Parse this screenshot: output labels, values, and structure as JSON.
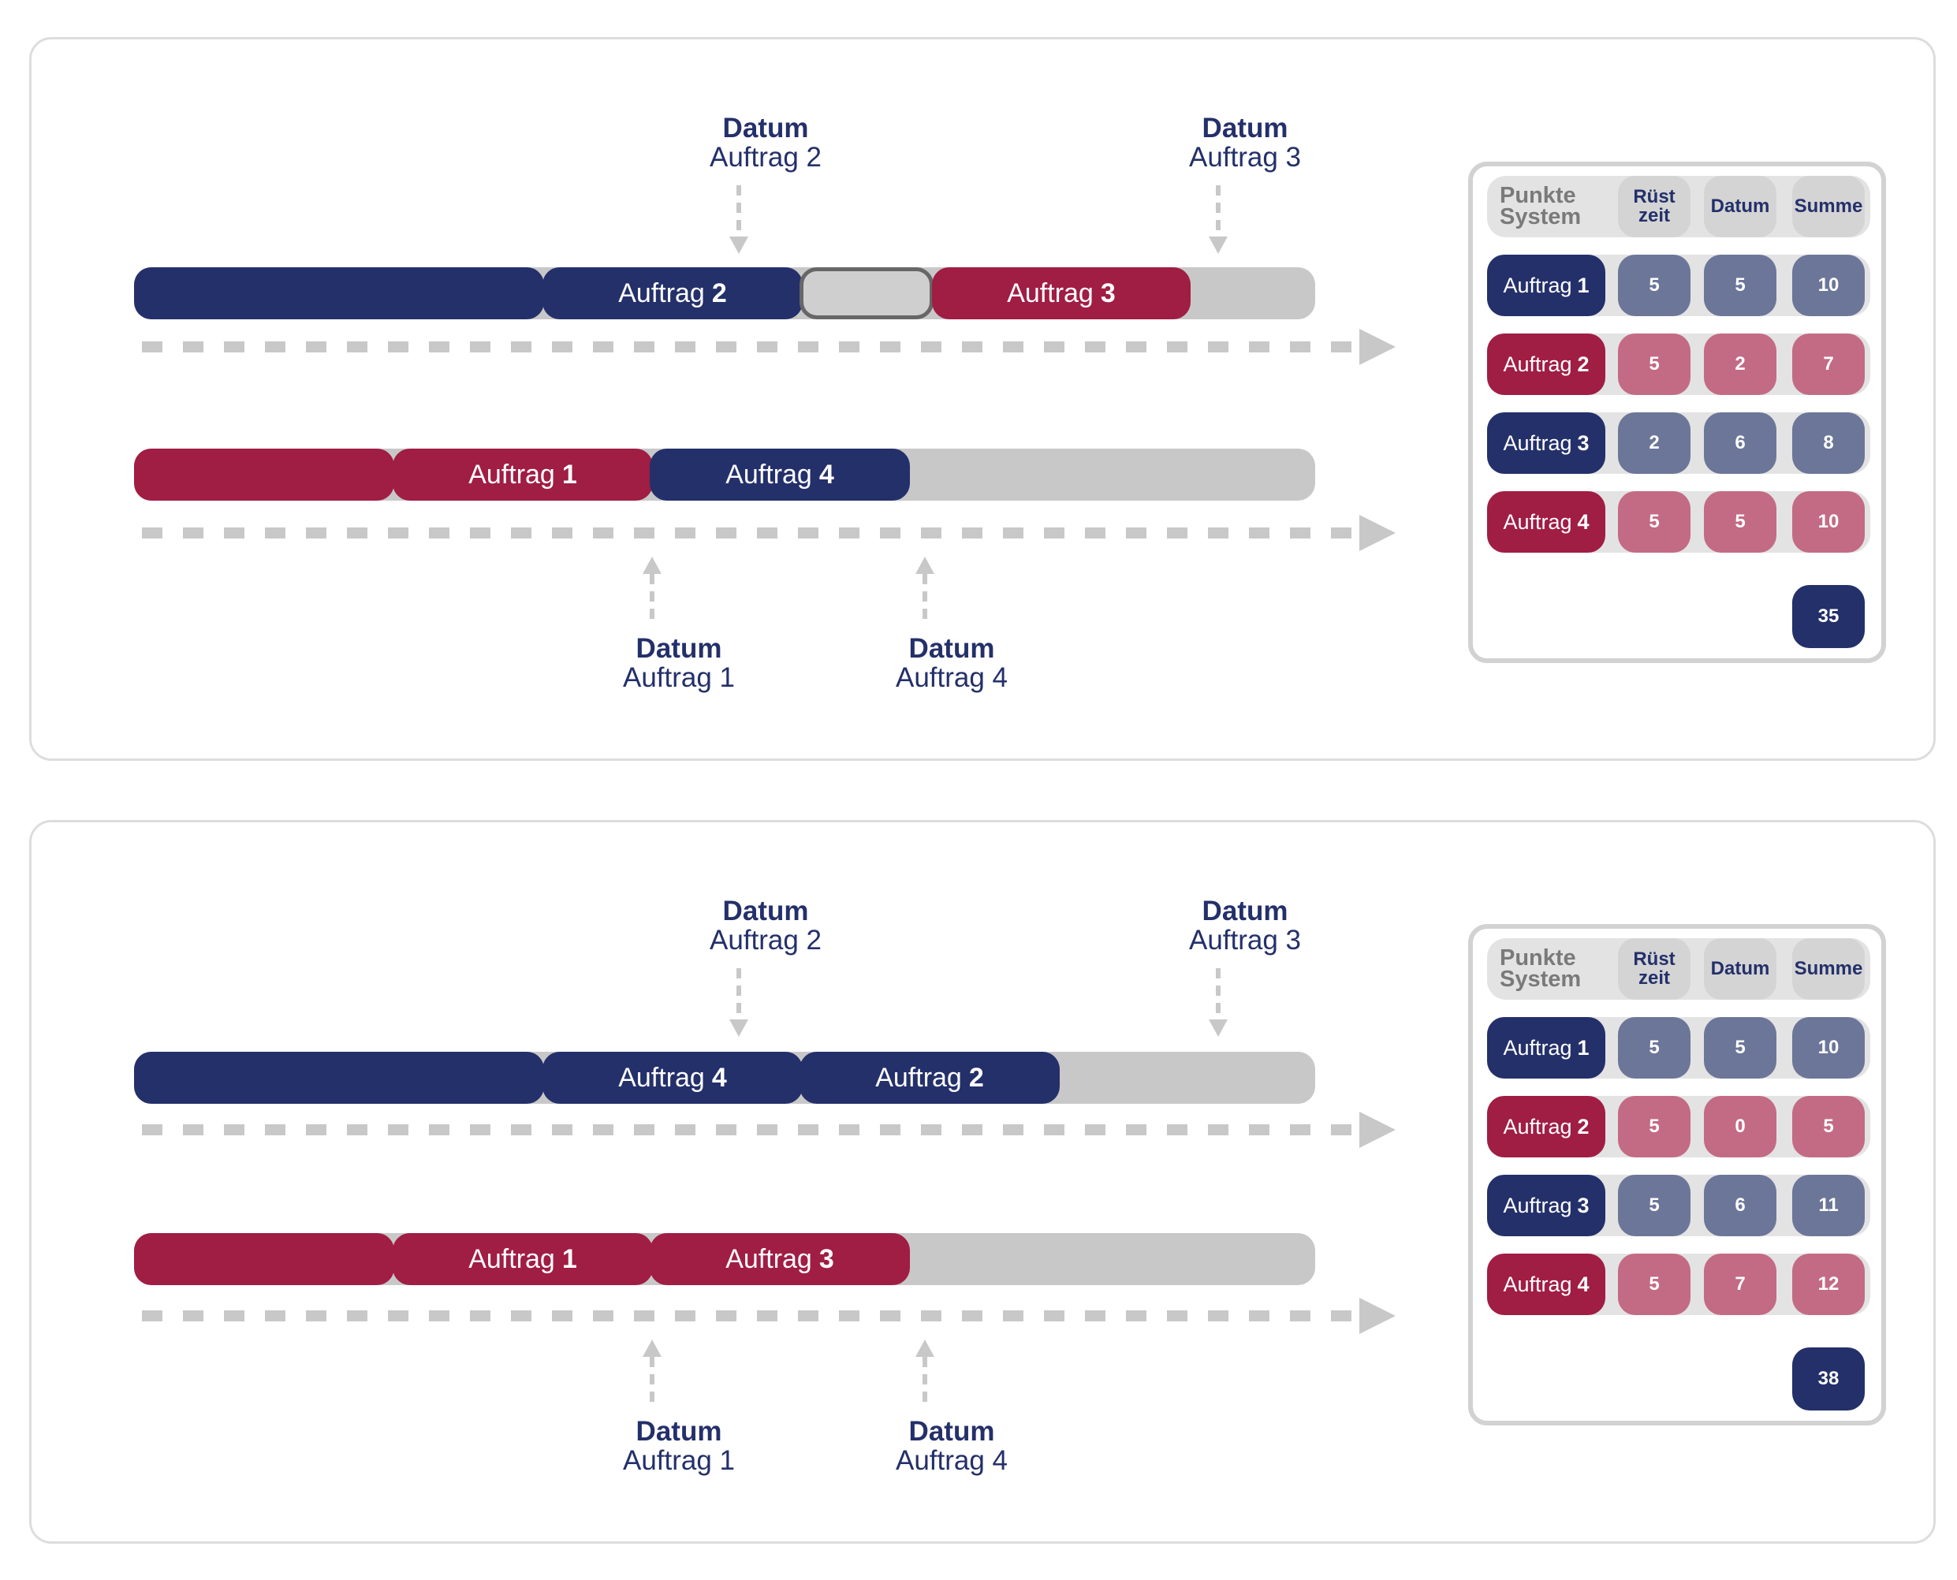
{
  "colors": {
    "navy": "#24306a",
    "crimson": "#a01d44",
    "track": "#c8c8c8",
    "navy_soft": "#6c7699",
    "crimson_soft": "#c36b84"
  },
  "panels": [
    {
      "callouts": {
        "top_a": {
          "title": "Datum",
          "sub": "Auftrag 2"
        },
        "top_b": {
          "title": "Datum",
          "sub": "Auftrag 3"
        },
        "bottom_a": {
          "title": "Datum",
          "sub": "Auftrag 1"
        },
        "bottom_b": {
          "title": "Datum",
          "sub": "Auftrag 4"
        }
      },
      "line1": [
        {
          "word": "",
          "num": "",
          "color": "navy"
        },
        {
          "word": "Auftrag",
          "num": "2",
          "color": "navy"
        },
        {
          "word": "",
          "num": "",
          "color": "gap"
        },
        {
          "word": "Auftrag",
          "num": "3",
          "color": "crimson"
        }
      ],
      "line2": [
        {
          "word": "",
          "num": "",
          "color": "crimson"
        },
        {
          "word": "Auftrag",
          "num": "1",
          "color": "crimson"
        },
        {
          "word": "Auftrag",
          "num": "4",
          "color": "navy"
        }
      ],
      "table": {
        "header": {
          "label": "Punkte System",
          "col1": "Rüst zeit",
          "col2": "Datum",
          "col3": "Summe"
        },
        "rows": [
          {
            "word": "Auftrag",
            "num": "1",
            "color": "navy",
            "v1": "5",
            "v2": "5",
            "v3": "10"
          },
          {
            "word": "Auftrag",
            "num": "2",
            "color": "crimson",
            "v1": "5",
            "v2": "2",
            "v3": "7"
          },
          {
            "word": "Auftrag",
            "num": "3",
            "color": "navy",
            "v1": "2",
            "v2": "6",
            "v3": "8"
          },
          {
            "word": "Auftrag",
            "num": "4",
            "color": "crimson",
            "v1": "5",
            "v2": "5",
            "v3": "10"
          }
        ],
        "total": "35"
      }
    },
    {
      "callouts": {
        "top_a": {
          "title": "Datum",
          "sub": "Auftrag 2"
        },
        "top_b": {
          "title": "Datum",
          "sub": "Auftrag 3"
        },
        "bottom_a": {
          "title": "Datum",
          "sub": "Auftrag 1"
        },
        "bottom_b": {
          "title": "Datum",
          "sub": "Auftrag 4"
        }
      },
      "line1": [
        {
          "word": "",
          "num": "",
          "color": "navy"
        },
        {
          "word": "Auftrag",
          "num": "4",
          "color": "navy"
        },
        {
          "word": "Auftrag",
          "num": "2",
          "color": "navy"
        }
      ],
      "line2": [
        {
          "word": "",
          "num": "",
          "color": "crimson"
        },
        {
          "word": "Auftrag",
          "num": "1",
          "color": "crimson"
        },
        {
          "word": "Auftrag",
          "num": "3",
          "color": "crimson"
        }
      ],
      "table": {
        "header": {
          "label": "Punkte System",
          "col1": "Rüst zeit",
          "col2": "Datum",
          "col3": "Summe"
        },
        "rows": [
          {
            "word": "Auftrag",
            "num": "1",
            "color": "navy",
            "v1": "5",
            "v2": "5",
            "v3": "10"
          },
          {
            "word": "Auftrag",
            "num": "2",
            "color": "crimson",
            "v1": "5",
            "v2": "0",
            "v3": "5"
          },
          {
            "word": "Auftrag",
            "num": "3",
            "color": "navy",
            "v1": "5",
            "v2": "6",
            "v3": "11"
          },
          {
            "word": "Auftrag",
            "num": "4",
            "color": "crimson",
            "v1": "5",
            "v2": "7",
            "v3": "12"
          }
        ],
        "total": "38"
      }
    }
  ]
}
